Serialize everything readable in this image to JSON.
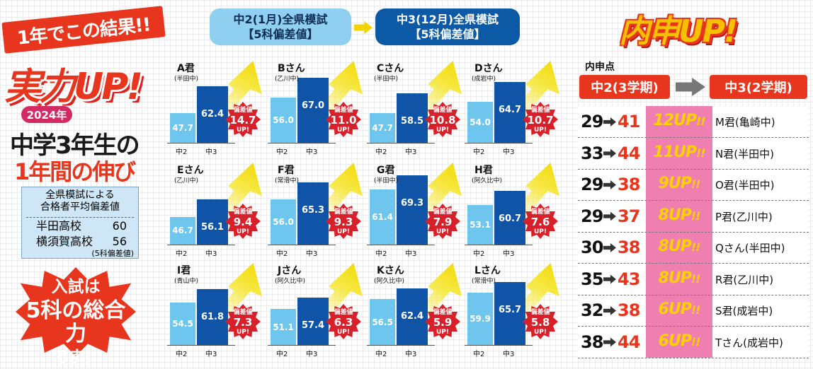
{
  "left": {
    "tag": "1年でこの結果!!",
    "headline": "実力UP!",
    "year": "2024年",
    "subtitle1": "中学3年生の",
    "subtitle2": "1年間の伸び",
    "info_header_line1": "全県模試による",
    "info_header_line2": "合格者平均偏差値",
    "schools": [
      {
        "name": "半田高校",
        "value": "60"
      },
      {
        "name": "横須賀高校",
        "value": "56"
      }
    ],
    "info_note": "(5科偏差値)",
    "star_line1": "入試は",
    "star_line2": "5科の総合力",
    "star_line3": "です！"
  },
  "header": {
    "from_line1": "中2(1月)全県模試",
    "from_line2": "【5科偏差値】",
    "to_line1": "中3(12月)全県模試",
    "to_line2": "【5科偏差値】"
  },
  "panel_labels": {
    "x1": "中2",
    "x2": "中3",
    "burst_top": "偏差値",
    "burst_bottom": "UP!"
  },
  "students": [
    {
      "name": "A君",
      "school": "(半田中)",
      "g2": "47.7",
      "g3": "62.4",
      "up": "14.7"
    },
    {
      "name": "Bさん",
      "school": "(乙川中)",
      "g2": "56.0",
      "g3": "67.0",
      "up": "11.0"
    },
    {
      "name": "Cさん",
      "school": "(半田中)",
      "g2": "47.7",
      "g3": "58.5",
      "up": "10.8"
    },
    {
      "name": "Dさん",
      "school": "(成岩中)",
      "g2": "54.0",
      "g3": "64.7",
      "up": "10.7"
    },
    {
      "name": "Eさん",
      "school": "(乙川中)",
      "g2": "46.7",
      "g3": "56.1",
      "up": "9.4"
    },
    {
      "name": "F君",
      "school": "(常滑中)",
      "g2": "56.0",
      "g3": "65.3",
      "up": "9.3"
    },
    {
      "name": "G君",
      "school": "(半田中)",
      "g2": "61.4",
      "g3": "69.3",
      "up": "7.9"
    },
    {
      "name": "H君",
      "school": "(阿久比中)",
      "g2": "53.1",
      "g3": "60.7",
      "up": "7.6"
    },
    {
      "name": "I君",
      "school": "(青山中)",
      "g2": "54.5",
      "g3": "61.8",
      "up": "7.3"
    },
    {
      "name": "Jさん",
      "school": "(阿久比中)",
      "g2": "51.1",
      "g3": "57.4",
      "up": "6.3"
    },
    {
      "name": "Kさん",
      "school": "(阿久比中)",
      "g2": "56.5",
      "g3": "62.4",
      "up": "5.9"
    },
    {
      "name": "Lさん",
      "school": "(常滑中)",
      "g2": "59.9",
      "g3": "65.7",
      "up": "5.8"
    }
  ],
  "right": {
    "title": "内申UP!",
    "label": "内申点",
    "col_from": "中2(3学期)",
    "col_to": "中3(2学期)",
    "rows": [
      {
        "from": "29",
        "to": "41",
        "up": "12UP",
        "mark": "!!",
        "who": "M君(亀崎中)"
      },
      {
        "from": "33",
        "to": "44",
        "up": "11UP",
        "mark": "!!",
        "who": "N君(半田中)"
      },
      {
        "from": "29",
        "to": "38",
        "up": "9UP",
        "mark": "!!",
        "who": "O君(半田中)"
      },
      {
        "from": "29",
        "to": "37",
        "up": "8UP",
        "mark": "!!",
        "who": "P君(乙川中)"
      },
      {
        "from": "30",
        "to": "38",
        "up": "8UP",
        "mark": "!!",
        "who": "Qさん(半田中)"
      },
      {
        "from": "35",
        "to": "43",
        "up": "8UP",
        "mark": "!!",
        "who": "R君(乙川中)"
      },
      {
        "from": "32",
        "to": "38",
        "up": "6UP",
        "mark": "!!",
        "who": "S君(成岩中)"
      },
      {
        "from": "38",
        "to": "44",
        "up": "6UP",
        "mark": "!!",
        "who": "Tさん(成岩中)"
      }
    ]
  }
}
